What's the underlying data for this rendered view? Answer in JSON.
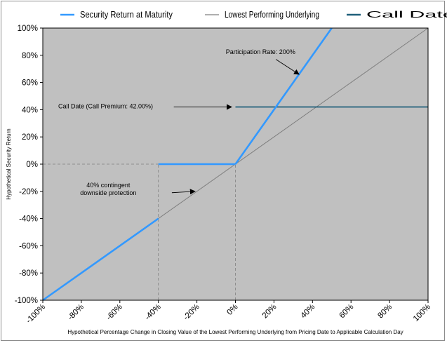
{
  "chart_data": {
    "type": "line",
    "xlabel": "Hypothetical Percentage Change in Closing Value of the Lowest Performing Underlying from Pricing Date to Applicable Calculation Day",
    "ylabel": "Hypothetical Security Return",
    "xlim": [
      -100,
      100
    ],
    "ylim": [
      -100,
      100
    ],
    "x_ticks": [
      "-100%",
      "-80%",
      "-60%",
      "-40%",
      "-20%",
      "0%",
      "20%",
      "40%",
      "60%",
      "80%",
      "100%"
    ],
    "y_ticks": [
      "100%",
      "80%",
      "60%",
      "40%",
      "20%",
      "0%",
      "-20%",
      "-40%",
      "-60%",
      "-80%",
      "-100%"
    ],
    "legend_position": "top",
    "series": [
      {
        "name": "Security Return at Maturity",
        "color": "#3399ff",
        "points": [
          [
            -100,
            -100
          ],
          [
            -40,
            -40
          ]
        ],
        "segments": [
          [
            [
              -100,
              -100
            ],
            [
              -40,
              -40
            ]
          ],
          [
            [
              -40,
              0
            ],
            [
              0,
              0
            ]
          ],
          [
            [
              0,
              0
            ],
            [
              50,
              100
            ]
          ]
        ]
      },
      {
        "name": "Lowest Performing Underlying",
        "color": "#7f7f7f",
        "segments": [
          [
            [
              -100,
              -100
            ],
            [
              100,
              100
            ]
          ]
        ]
      },
      {
        "name": "Call Date",
        "color": "#1f5f7a",
        "segments": [
          [
            [
              0,
              42
            ],
            [
              100,
              42
            ]
          ]
        ]
      }
    ],
    "annotations": [
      {
        "lines": [
          "Participation Rate: 200%"
        ],
        "text_at": [
          -5,
          81
        ],
        "arrow_from": [
          21,
          77
        ],
        "arrow_to": [
          33,
          66
        ]
      },
      {
        "lines": [
          "Call Date (Call Premium: 42.00%)"
        ],
        "text_at": [
          -92,
          41
        ],
        "arrow_from": [
          -32,
          42
        ],
        "arrow_to": [
          -2,
          42
        ]
      },
      {
        "lines": [
          "40% contingent",
          "downside protection"
        ],
        "text_at": [
          -66,
          -17
        ],
        "arrow_from": [
          -33,
          -21
        ],
        "arrow_to": [
          -21,
          -20
        ]
      }
    ],
    "reference_lines": [
      {
        "orientation": "horizontal",
        "y": 0,
        "x_from": -100,
        "x_to": -40
      },
      {
        "orientation": "vertical",
        "x": -40,
        "y_from": -100,
        "y_to": 0
      },
      {
        "orientation": "vertical",
        "x": 0,
        "y_from": -100,
        "y_to": 0
      }
    ],
    "background_color": "#c0c0c0",
    "grid": false
  }
}
